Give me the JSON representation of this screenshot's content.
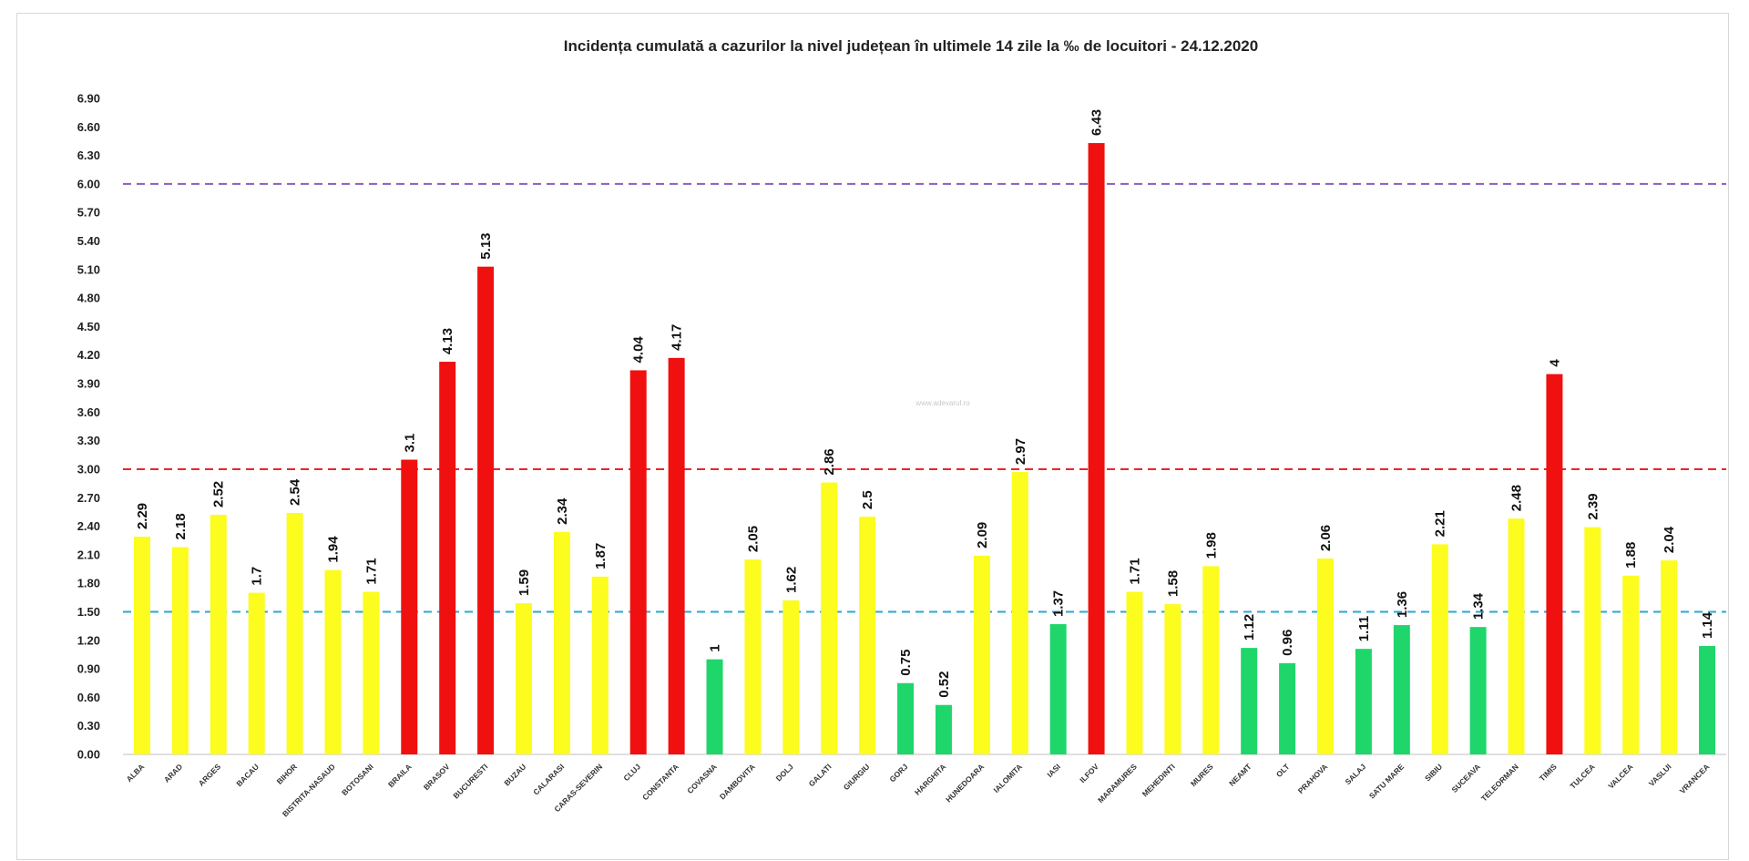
{
  "chart_data": {
    "type": "bar",
    "title": "Incidența cumulată a cazurilor la nivel județean în ultimele 14 zile la ‰ de locuitori - 24.12.2020",
    "xlabel": "",
    "ylabel": "",
    "ylim": [
      0,
      6.9
    ],
    "yticks": [
      "0.00",
      "0.30",
      "0.60",
      "0.90",
      "1.20",
      "1.50",
      "1.80",
      "2.10",
      "2.40",
      "2.70",
      "3.00",
      "3.30",
      "3.60",
      "3.90",
      "4.20",
      "4.50",
      "4.80",
      "5.10",
      "5.40",
      "5.70",
      "6.00",
      "6.30",
      "6.60",
      "6.90"
    ],
    "categories": [
      "ALBA",
      "ARAD",
      "ARGES",
      "BACAU",
      "BIHOR",
      "BISTRITA-NASAUD",
      "BOTOSANI",
      "BRAILA",
      "BRASOV",
      "BUCURESTI",
      "BUZAU",
      "CALARASI",
      "CARAS-SEVERIN",
      "CLUJ",
      "CONSTANTA",
      "COVASNA",
      "DAMBOVITA",
      "DOLJ",
      "GALATI",
      "GIURGIU",
      "GORJ",
      "HARGHITA",
      "HUNEDOARA",
      "IALOMITA",
      "IASI",
      "ILFOV",
      "MARAMURES",
      "MEHEDINTI",
      "MURES",
      "NEAMT",
      "OLT",
      "PRAHOVA",
      "SALAJ",
      "SATU MARE",
      "SIBIU",
      "SUCEAVA",
      "TELEORMAN",
      "TIMIS",
      "TULCEA",
      "VALCEA",
      "VASLUI",
      "VRANCEA"
    ],
    "values": [
      2.29,
      2.18,
      2.52,
      1.7,
      2.54,
      1.94,
      1.71,
      3.1,
      4.13,
      5.13,
      1.59,
      2.34,
      1.87,
      4.04,
      4.17,
      1,
      2.05,
      1.62,
      2.86,
      2.5,
      0.75,
      0.52,
      2.09,
      2.97,
      1.37,
      6.43,
      1.71,
      1.58,
      1.98,
      1.12,
      0.96,
      2.06,
      1.11,
      1.36,
      2.21,
      1.34,
      2.48,
      4,
      2.39,
      1.88,
      2.04,
      1.14
    ],
    "value_labels": [
      "2.29",
      "2.18",
      "2.52",
      "1.7",
      "2.54",
      "1.94",
      "1.71",
      "3.1",
      "4.13",
      "5.13",
      "1.59",
      "2.34",
      "1.87",
      "4.04",
      "4.17",
      "1",
      "2.05",
      "1.62",
      "2.86",
      "2.5",
      "0.75",
      "0.52",
      "2.09",
      "2.97",
      "1.37",
      "6.43",
      "1.71",
      "1.58",
      "1.98",
      "1.12",
      "0.96",
      "2.06",
      "1.11",
      "1.36",
      "2.21",
      "1.34",
      "2.48",
      "4",
      "2.39",
      "1.88",
      "2.04",
      "1.14"
    ],
    "thresholds": [
      {
        "value": 1.5,
        "color": "#2aa7d6"
      },
      {
        "value": 3.0,
        "color": "#e8262b"
      },
      {
        "value": 6.0,
        "color": "#8a5cc4"
      }
    ],
    "bar_colors": {
      "low": "#1ed66a",
      "mid": "#fcfc1e",
      "high": "#f01010"
    },
    "grid": false,
    "legend": "none"
  },
  "watermark_text": "www.adevarul.ro"
}
